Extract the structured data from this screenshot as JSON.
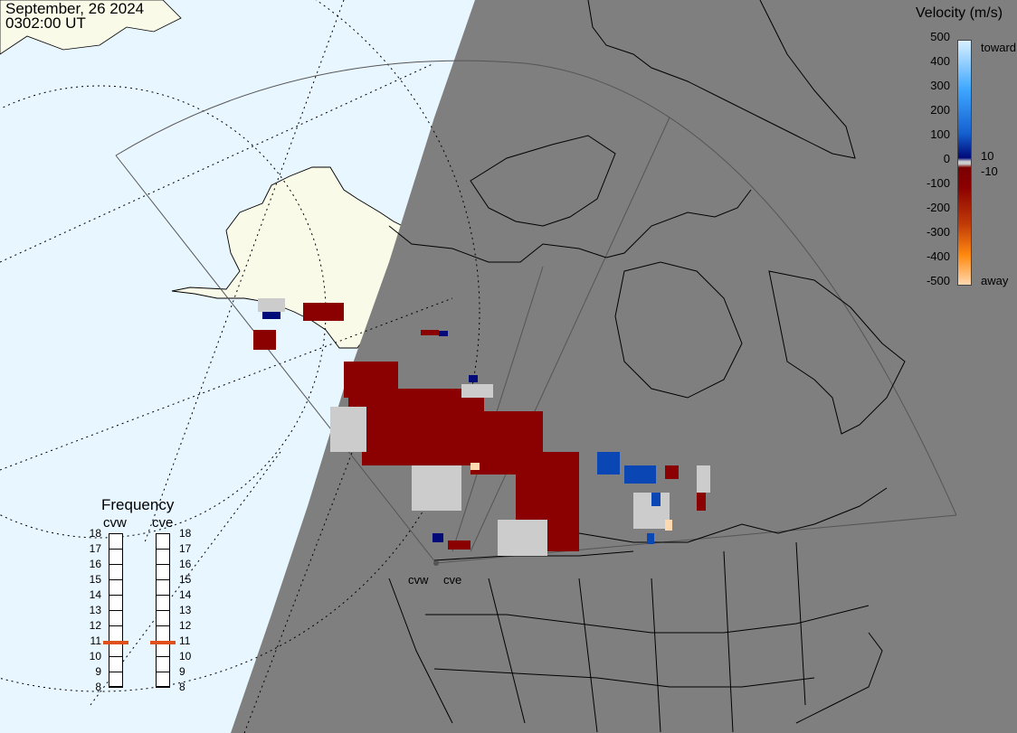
{
  "header": {
    "date": "September, 26 2024",
    "time": "0302:00 UT"
  },
  "legend": {
    "title": "Velocity (m/s)",
    "ticks_left": [
      "500",
      "400",
      "300",
      "200",
      "100",
      "0",
      "-100",
      "-200",
      "-300",
      "-400",
      "-500"
    ],
    "label_toward": "toward",
    "label_away": "away",
    "label_pos10": "10",
    "label_neg10": "-10",
    "colors": {
      "toward_high": "#d9f0ff",
      "toward_mid": "#1e8cf0",
      "toward_low": "#000a78",
      "zero": "#cccccc",
      "away_low": "#7a0000",
      "away_mid": "#e66414",
      "away_high": "#ffd9b0"
    }
  },
  "frequency": {
    "title": "Frequency",
    "radars": [
      {
        "name": "cvw",
        "mhz": 10.9
      },
      {
        "name": "cve",
        "mhz": 10.9
      }
    ],
    "scale": [
      "18",
      "17",
      "16",
      "15",
      "14",
      "13",
      "12",
      "11",
      "10",
      "9",
      "8"
    ]
  },
  "sites": {
    "cvw": "cvw",
    "cve": "cve"
  },
  "map_colors": {
    "ocean": "#e8f6ff",
    "land_day": "#fafae8",
    "night": "#7f7f7f",
    "marker": "#e0501c"
  }
}
